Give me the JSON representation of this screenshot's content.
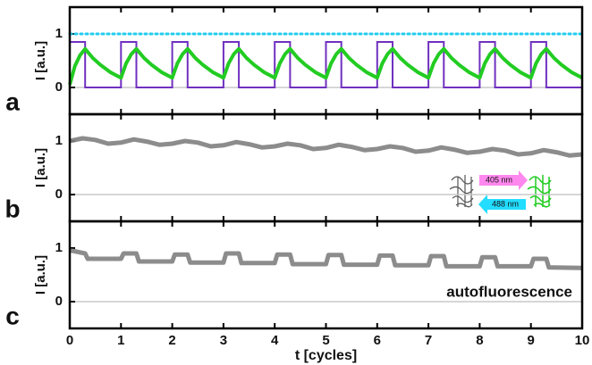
{
  "chart_data": [
    {
      "type": "line",
      "panel_label": "a",
      "ylabel": "I [a.u.]",
      "xlim": [
        0,
        10
      ],
      "xticks": [
        0,
        1,
        2,
        3,
        4,
        5,
        6,
        7,
        8,
        9,
        10
      ],
      "show_xtick_labels": false,
      "ylim": [
        -0.5,
        1.5
      ],
      "yticks": [
        0,
        1
      ],
      "zero_line": true,
      "series": [
        {
          "color": "#22ccee",
          "line_style": "dotted",
          "x": [
            0,
            10
          ],
          "values": [
            1,
            1
          ]
        },
        {
          "color": "#7030c0",
          "line_style": "solid",
          "x": [
            0,
            0,
            0.3,
            0.3,
            1,
            1,
            1.3,
            1.3,
            2,
            2,
            2.3,
            2.3,
            3,
            3,
            3.3,
            3.3,
            4,
            4,
            4.3,
            4.3,
            5,
            5,
            5.3,
            5.3,
            6,
            6,
            6.3,
            6.3,
            7,
            7,
            7.3,
            7.3,
            8,
            8,
            8.3,
            8.3,
            9,
            9,
            9.3,
            9.3,
            10
          ],
          "values": [
            0,
            0.85,
            0.85,
            0,
            0,
            0.85,
            0.85,
            0,
            0,
            0.85,
            0.85,
            0,
            0,
            0.85,
            0.85,
            0,
            0,
            0.85,
            0.85,
            0,
            0,
            0.85,
            0.85,
            0,
            0,
            0.85,
            0.85,
            0,
            0,
            0.85,
            0.85,
            0,
            0,
            0.85,
            0.85,
            0,
            0,
            0.85,
            0.85,
            0,
            0
          ]
        },
        {
          "color": "#22cc22",
          "line_style": "thick",
          "x": [
            0,
            0.1,
            0.2,
            0.3,
            0.45,
            0.6,
            0.8,
            1,
            1.1,
            1.2,
            1.3,
            1.45,
            1.6,
            1.8,
            2,
            2.1,
            2.2,
            2.3,
            2.45,
            2.6,
            2.8,
            3,
            3.1,
            3.2,
            3.3,
            3.45,
            3.6,
            3.8,
            4,
            4.1,
            4.2,
            4.3,
            4.45,
            4.6,
            4.8,
            5,
            5.1,
            5.2,
            5.3,
            5.45,
            5.6,
            5.8,
            6,
            6.1,
            6.2,
            6.3,
            6.45,
            6.6,
            6.8,
            7,
            7.1,
            7.2,
            7.3,
            7.45,
            7.6,
            7.8,
            8,
            8.1,
            8.2,
            8.3,
            8.45,
            8.6,
            8.8,
            9,
            9.1,
            9.2,
            9.3,
            9.45,
            9.6,
            9.8,
            10
          ],
          "values": [
            0.05,
            0.4,
            0.6,
            0.72,
            0.55,
            0.42,
            0.28,
            0.18,
            0.45,
            0.62,
            0.72,
            0.55,
            0.42,
            0.28,
            0.18,
            0.45,
            0.62,
            0.72,
            0.55,
            0.42,
            0.28,
            0.18,
            0.45,
            0.62,
            0.72,
            0.55,
            0.42,
            0.28,
            0.18,
            0.45,
            0.62,
            0.72,
            0.55,
            0.42,
            0.28,
            0.18,
            0.45,
            0.62,
            0.72,
            0.55,
            0.42,
            0.28,
            0.18,
            0.45,
            0.62,
            0.72,
            0.55,
            0.42,
            0.28,
            0.18,
            0.45,
            0.62,
            0.72,
            0.55,
            0.42,
            0.28,
            0.18,
            0.45,
            0.62,
            0.72,
            0.55,
            0.42,
            0.28,
            0.18,
            0.45,
            0.62,
            0.72,
            0.55,
            0.42,
            0.28,
            0.18
          ]
        }
      ]
    },
    {
      "type": "line",
      "panel_label": "b",
      "ylabel": "I [a.u.]",
      "xlim": [
        0,
        10
      ],
      "xticks": [
        0,
        1,
        2,
        3,
        4,
        5,
        6,
        7,
        8,
        9,
        10
      ],
      "show_xtick_labels": false,
      "ylim": [
        -0.5,
        1.5
      ],
      "yticks": [
        0,
        1
      ],
      "zero_line": true,
      "annotations": [
        "405 nm",
        "488 nm"
      ],
      "series": [
        {
          "color": "#808080",
          "line_style": "noisy",
          "x": [
            0,
            0.25,
            0.5,
            0.75,
            1,
            1.25,
            1.5,
            1.75,
            2,
            2.25,
            2.5,
            2.75,
            3,
            3.25,
            3.5,
            3.75,
            4,
            4.25,
            4.5,
            4.75,
            5,
            5.25,
            5.5,
            5.75,
            6,
            6.25,
            6.5,
            6.75,
            7,
            7.25,
            7.5,
            7.75,
            8,
            8.25,
            8.5,
            8.75,
            9,
            9.25,
            9.5,
            9.75,
            10
          ],
          "values": [
            1.0,
            1.05,
            1.02,
            0.95,
            0.97,
            1.03,
            0.99,
            0.93,
            0.95,
            1.0,
            0.97,
            0.9,
            0.92,
            0.98,
            0.94,
            0.88,
            0.9,
            0.95,
            0.92,
            0.85,
            0.87,
            0.93,
            0.89,
            0.83,
            0.85,
            0.9,
            0.87,
            0.8,
            0.82,
            0.88,
            0.84,
            0.78,
            0.8,
            0.85,
            0.82,
            0.75,
            0.77,
            0.83,
            0.79,
            0.73,
            0.75
          ]
        }
      ]
    },
    {
      "type": "line",
      "panel_label": "c",
      "ylabel": "I [a.u.]",
      "xlabel": "t [cycles]",
      "xlim": [
        0,
        10
      ],
      "xticks": [
        0,
        1,
        2,
        3,
        4,
        5,
        6,
        7,
        8,
        9,
        10
      ],
      "show_xtick_labels": true,
      "ylim": [
        -0.5,
        1.5
      ],
      "yticks": [
        0,
        1
      ],
      "zero_line": true,
      "annotations": [
        "autofluorescence"
      ],
      "series": [
        {
          "color": "#808080",
          "line_style": "noisy",
          "x": [
            0,
            0.05,
            0.3,
            0.35,
            1,
            1.05,
            1.3,
            1.35,
            2,
            2.05,
            2.3,
            2.35,
            3,
            3.05,
            3.3,
            3.35,
            4,
            4.05,
            4.3,
            4.35,
            5,
            5.05,
            5.3,
            5.35,
            6,
            6.05,
            6.3,
            6.35,
            7,
            7.05,
            7.3,
            7.35,
            8,
            8.05,
            8.3,
            8.35,
            9,
            9.05,
            9.3,
            9.35,
            10
          ],
          "values": [
            0.95,
            0.95,
            0.9,
            0.8,
            0.8,
            0.9,
            0.9,
            0.75,
            0.75,
            0.88,
            0.88,
            0.73,
            0.73,
            0.9,
            0.9,
            0.72,
            0.72,
            0.88,
            0.88,
            0.7,
            0.7,
            0.87,
            0.87,
            0.69,
            0.69,
            0.86,
            0.86,
            0.68,
            0.68,
            0.85,
            0.85,
            0.66,
            0.66,
            0.83,
            0.83,
            0.66,
            0.66,
            0.8,
            0.8,
            0.64,
            0.63
          ]
        }
      ]
    }
  ]
}
